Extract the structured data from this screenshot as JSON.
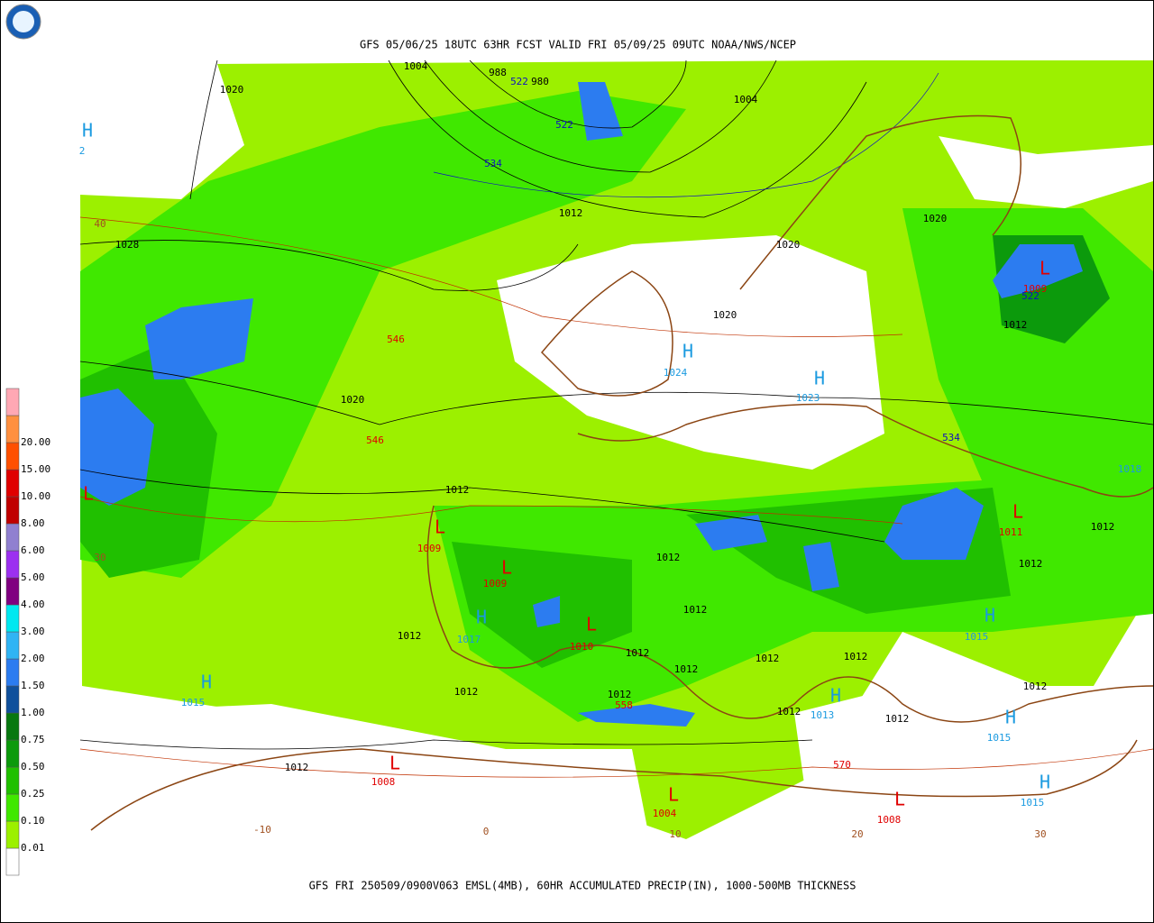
{
  "header": {
    "title": "GFS 05/06/25 18UTC 63HR FCST VALID FRI 05/09/25 09UTC NOAA/NWS/NCEP"
  },
  "footer": {
    "caption": "GFS FRI 250509/0900V063 EMSL(4MB), 60HR ACCUMULATED PRECIP(IN), 1000-500MB THICKNESS"
  },
  "legend": {
    "levels": [
      {
        "label": "0.01",
        "color": "#9cf000"
      },
      {
        "label": "0.10",
        "color": "#40e800"
      },
      {
        "label": "0.25",
        "color": "#20c000"
      },
      {
        "label": "0.50",
        "color": "#0c9a0c"
      },
      {
        "label": "0.75",
        "color": "#087810"
      },
      {
        "label": "1.00",
        "color": "#10509c"
      },
      {
        "label": "1.50",
        "color": "#2c7cf0"
      },
      {
        "label": "2.00",
        "color": "#30b4f4"
      },
      {
        "label": "3.00",
        "color": "#00e8f0"
      },
      {
        "label": "4.00",
        "color": "#800080"
      },
      {
        "label": "5.00",
        "color": "#9c30f0"
      },
      {
        "label": "6.00",
        "color": "#9080d0"
      },
      {
        "label": "8.00",
        "color": "#c00000"
      },
      {
        "label": "10.00",
        "color": "#e00000"
      },
      {
        "label": "15.00",
        "color": "#ff5000"
      },
      {
        "label": "20.00",
        "color": "#ff9040"
      }
    ],
    "top_color": "#ffa8b4",
    "bottom_color": "#ffffff"
  },
  "map": {
    "labels": [
      {
        "text": "1004",
        "color": "#000000"
      },
      {
        "text": "988",
        "color": "#000000"
      },
      {
        "text": "522",
        "color": "#1010c0"
      },
      {
        "text": "980",
        "color": "#000000"
      },
      {
        "text": "1020",
        "color": "#000000"
      },
      {
        "text": "1004",
        "color": "#000000"
      },
      {
        "text": "522",
        "color": "#1010c0"
      },
      {
        "text": "534",
        "color": "#1010c0"
      },
      {
        "text": "1012",
        "color": "#000000"
      },
      {
        "text": "40",
        "color": "#a05020"
      },
      {
        "text": "1028",
        "color": "#000000"
      },
      {
        "text": "1020",
        "color": "#000000"
      },
      {
        "text": "1020",
        "color": "#000000"
      },
      {
        "text": "1009",
        "color": "#e00000"
      },
      {
        "text": "522",
        "color": "#1010c0"
      },
      {
        "text": "1012",
        "color": "#000000"
      },
      {
        "text": "1020",
        "color": "#000000"
      },
      {
        "text": "546",
        "color": "#e00000"
      },
      {
        "text": "1024",
        "color": "#1a9ae0"
      },
      {
        "text": "1023",
        "color": "#1a9ae0"
      },
      {
        "text": "1020",
        "color": "#000000"
      },
      {
        "text": "546",
        "color": "#e00000"
      },
      {
        "text": "534",
        "color": "#1010c0"
      },
      {
        "text": "1012",
        "color": "#000000"
      },
      {
        "text": "1009",
        "color": "#e00000"
      },
      {
        "text": "1011",
        "color": "#e00000"
      },
      {
        "text": "1012",
        "color": "#000000"
      },
      {
        "text": "1012",
        "color": "#000000"
      },
      {
        "text": "1009",
        "color": "#e00000"
      },
      {
        "text": "1012",
        "color": "#000000"
      },
      {
        "text": "1012",
        "color": "#000000"
      },
      {
        "text": "1012",
        "color": "#000000"
      },
      {
        "text": "1017",
        "color": "#1a9ae0"
      },
      {
        "text": "1010",
        "color": "#e00000"
      },
      {
        "text": "1012",
        "color": "#000000"
      },
      {
        "text": "1012",
        "color": "#000000"
      },
      {
        "text": "1012",
        "color": "#000000"
      },
      {
        "text": "1012",
        "color": "#000000"
      },
      {
        "text": "1015",
        "color": "#1a9ae0"
      },
      {
        "text": "1012",
        "color": "#000000"
      },
      {
        "text": "1012",
        "color": "#000000"
      },
      {
        "text": "558",
        "color": "#e00000"
      },
      {
        "text": "1015",
        "color": "#1a9ae0"
      },
      {
        "text": "1013",
        "color": "#1a9ae0"
      },
      {
        "text": "1012",
        "color": "#000000"
      },
      {
        "text": "1012",
        "color": "#000000"
      },
      {
        "text": "1012",
        "color": "#000000"
      },
      {
        "text": "1015",
        "color": "#1a9ae0"
      },
      {
        "text": "1012",
        "color": "#000000"
      },
      {
        "text": "1008",
        "color": "#e00000"
      },
      {
        "text": "570",
        "color": "#e00000"
      },
      {
        "text": "1015",
        "color": "#1a9ae0"
      },
      {
        "text": "1004",
        "color": "#e00000"
      },
      {
        "text": "1008",
        "color": "#e00000"
      },
      {
        "text": "-10",
        "color": "#a05020"
      },
      {
        "text": "0",
        "color": "#a05020"
      },
      {
        "text": "10",
        "color": "#a05020"
      },
      {
        "text": "20",
        "color": "#a05020"
      },
      {
        "text": "30",
        "color": "#a05020"
      },
      {
        "text": "30",
        "color": "#a05020"
      },
      {
        "text": "1018",
        "color": "#1a9ae0"
      },
      {
        "text": "2",
        "color": "#1a9ae0"
      }
    ],
    "markers": [
      {
        "text": "H",
        "color": "#1a9ae0"
      },
      {
        "text": "H",
        "color": "#1a9ae0"
      },
      {
        "text": "H",
        "color": "#1a9ae0"
      },
      {
        "text": "H",
        "color": "#1a9ae0"
      },
      {
        "text": "H",
        "color": "#1a9ae0"
      },
      {
        "text": "H",
        "color": "#1a9ae0"
      },
      {
        "text": "H",
        "color": "#1a9ae0"
      },
      {
        "text": "H",
        "color": "#1a9ae0"
      },
      {
        "text": "H",
        "color": "#1a9ae0"
      },
      {
        "text": "L",
        "color": "#e00000"
      },
      {
        "text": "L",
        "color": "#e00000"
      },
      {
        "text": "L",
        "color": "#e00000"
      },
      {
        "text": "L",
        "color": "#e00000"
      },
      {
        "text": "L",
        "color": "#e00000"
      },
      {
        "text": "L",
        "color": "#e00000"
      },
      {
        "text": "L",
        "color": "#e00000"
      },
      {
        "text": "L",
        "color": "#e00000"
      },
      {
        "text": "L",
        "color": "#e00000"
      }
    ]
  }
}
